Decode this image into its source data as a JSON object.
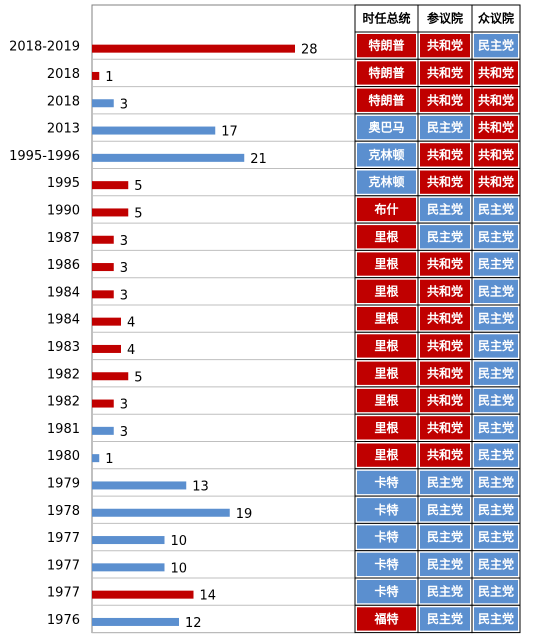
{
  "chart_data": {
    "type": "bar",
    "orientation": "horizontal",
    "colors": {
      "red": "#C00000",
      "blue": "#5B8FCF"
    },
    "table_headers": [
      "时任总统",
      "参议院",
      "众议院"
    ],
    "rows": [
      {
        "year": "2018-2019",
        "value": 28,
        "color": "red",
        "president": "特朗普",
        "p_color": "red",
        "senate": "共和党",
        "s_color": "red",
        "house": "民主党",
        "h_color": "blue"
      },
      {
        "year": "2018",
        "value": 1,
        "color": "red",
        "president": "特朗普",
        "p_color": "red",
        "senate": "共和党",
        "s_color": "red",
        "house": "共和党",
        "h_color": "red"
      },
      {
        "year": "2018",
        "value": 3,
        "color": "blue",
        "president": "特朗普",
        "p_color": "red",
        "senate": "共和党",
        "s_color": "red",
        "house": "共和党",
        "h_color": "red"
      },
      {
        "year": "2013",
        "value": 17,
        "color": "blue",
        "president": "奥巴马",
        "p_color": "blue",
        "senate": "民主党",
        "s_color": "blue",
        "house": "共和党",
        "h_color": "red"
      },
      {
        "year": "1995-1996",
        "value": 21,
        "color": "blue",
        "president": "克林顿",
        "p_color": "blue",
        "senate": "共和党",
        "s_color": "red",
        "house": "共和党",
        "h_color": "red"
      },
      {
        "year": "1995",
        "value": 5,
        "color": "red",
        "president": "克林顿",
        "p_color": "blue",
        "senate": "共和党",
        "s_color": "red",
        "house": "共和党",
        "h_color": "red"
      },
      {
        "year": "1990",
        "value": 5,
        "color": "red",
        "president": "布什",
        "p_color": "red",
        "senate": "民主党",
        "s_color": "blue",
        "house": "民主党",
        "h_color": "blue"
      },
      {
        "year": "1987",
        "value": 3,
        "color": "red",
        "president": "里根",
        "p_color": "red",
        "senate": "民主党",
        "s_color": "blue",
        "house": "民主党",
        "h_color": "blue"
      },
      {
        "year": "1986",
        "value": 3,
        "color": "red",
        "president": "里根",
        "p_color": "red",
        "senate": "共和党",
        "s_color": "red",
        "house": "民主党",
        "h_color": "blue"
      },
      {
        "year": "1984",
        "value": 3,
        "color": "red",
        "president": "里根",
        "p_color": "red",
        "senate": "共和党",
        "s_color": "red",
        "house": "民主党",
        "h_color": "blue"
      },
      {
        "year": "1984",
        "value": 4,
        "color": "red",
        "president": "里根",
        "p_color": "red",
        "senate": "共和党",
        "s_color": "red",
        "house": "民主党",
        "h_color": "blue"
      },
      {
        "year": "1983",
        "value": 4,
        "color": "red",
        "president": "里根",
        "p_color": "red",
        "senate": "共和党",
        "s_color": "red",
        "house": "民主党",
        "h_color": "blue"
      },
      {
        "year": "1982",
        "value": 5,
        "color": "red",
        "president": "里根",
        "p_color": "red",
        "senate": "共和党",
        "s_color": "red",
        "house": "民主党",
        "h_color": "blue"
      },
      {
        "year": "1982",
        "value": 3,
        "color": "red",
        "president": "里根",
        "p_color": "red",
        "senate": "共和党",
        "s_color": "red",
        "house": "民主党",
        "h_color": "blue"
      },
      {
        "year": "1981",
        "value": 3,
        "color": "blue",
        "president": "里根",
        "p_color": "red",
        "senate": "共和党",
        "s_color": "red",
        "house": "民主党",
        "h_color": "blue"
      },
      {
        "year": "1980",
        "value": 1,
        "color": "blue",
        "president": "里根",
        "p_color": "red",
        "senate": "共和党",
        "s_color": "red",
        "house": "民主党",
        "h_color": "blue"
      },
      {
        "year": "1979",
        "value": 13,
        "color": "blue",
        "president": "卡特",
        "p_color": "blue",
        "senate": "民主党",
        "s_color": "blue",
        "house": "民主党",
        "h_color": "blue"
      },
      {
        "year": "1978",
        "value": 19,
        "color": "blue",
        "president": "卡特",
        "p_color": "blue",
        "senate": "民主党",
        "s_color": "blue",
        "house": "民主党",
        "h_color": "blue"
      },
      {
        "year": "1977",
        "value": 10,
        "color": "blue",
        "president": "卡特",
        "p_color": "blue",
        "senate": "民主党",
        "s_color": "blue",
        "house": "民主党",
        "h_color": "blue"
      },
      {
        "year": "1977",
        "value": 10,
        "color": "blue",
        "president": "卡特",
        "p_color": "blue",
        "senate": "民主党",
        "s_color": "blue",
        "house": "民主党",
        "h_color": "blue"
      },
      {
        "year": "1977",
        "value": 14,
        "color": "red",
        "president": "卡特",
        "p_color": "blue",
        "senate": "民主党",
        "s_color": "blue",
        "house": "民主党",
        "h_color": "blue"
      },
      {
        "year": "1976",
        "value": 12,
        "color": "blue",
        "president": "福特",
        "p_color": "red",
        "senate": "民主党",
        "s_color": "blue",
        "house": "民主党",
        "h_color": "blue"
      }
    ],
    "grid": true
  }
}
